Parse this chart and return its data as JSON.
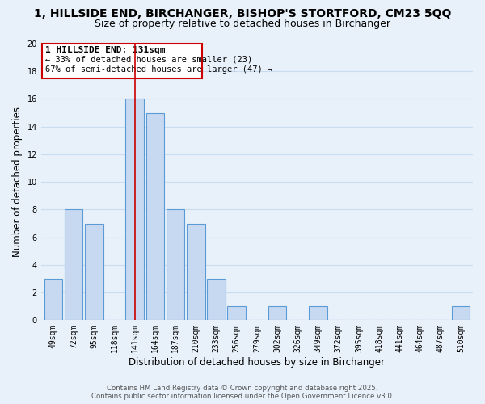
{
  "title_line1": "1, HILLSIDE END, BIRCHANGER, BISHOP'S STORTFORD, CM23 5QQ",
  "title_line2": "Size of property relative to detached houses in Birchanger",
  "xlabel": "Distribution of detached houses by size in Birchanger",
  "ylabel": "Number of detached properties",
  "categories": [
    "49sqm",
    "72sqm",
    "95sqm",
    "118sqm",
    "141sqm",
    "164sqm",
    "187sqm",
    "210sqm",
    "233sqm",
    "256sqm",
    "279sqm",
    "302sqm",
    "326sqm",
    "349sqm",
    "372sqm",
    "395sqm",
    "418sqm",
    "441sqm",
    "464sqm",
    "487sqm",
    "510sqm"
  ],
  "values": [
    3,
    8,
    7,
    0,
    16,
    15,
    8,
    7,
    3,
    1,
    0,
    1,
    0,
    1,
    0,
    0,
    0,
    0,
    0,
    0,
    1
  ],
  "bar_color": "#c6d9f1",
  "bar_edge_color": "#5b9bd5",
  "grid_color": "#c8ddf0",
  "background_color": "#e8f1fa",
  "ylim": [
    0,
    20
  ],
  "yticks": [
    0,
    2,
    4,
    6,
    8,
    10,
    12,
    14,
    16,
    18,
    20
  ],
  "annotation_title": "1 HILLSIDE END: 131sqm",
  "annotation_line1": "← 33% of detached houses are smaller (23)",
  "annotation_line2": "67% of semi-detached houses are larger (47) →",
  "annotation_box_color": "#ffffff",
  "annotation_box_edge": "#cc0000",
  "marker_bar_index": 4,
  "footer_line1": "Contains HM Land Registry data © Crown copyright and database right 2025.",
  "footer_line2": "Contains public sector information licensed under the Open Government Licence v3.0.",
  "title_fontsize": 10,
  "subtitle_fontsize": 9,
  "tick_fontsize": 7,
  "label_fontsize": 8.5,
  "annotation_fontsize_title": 8,
  "annotation_fontsize_body": 7.5
}
